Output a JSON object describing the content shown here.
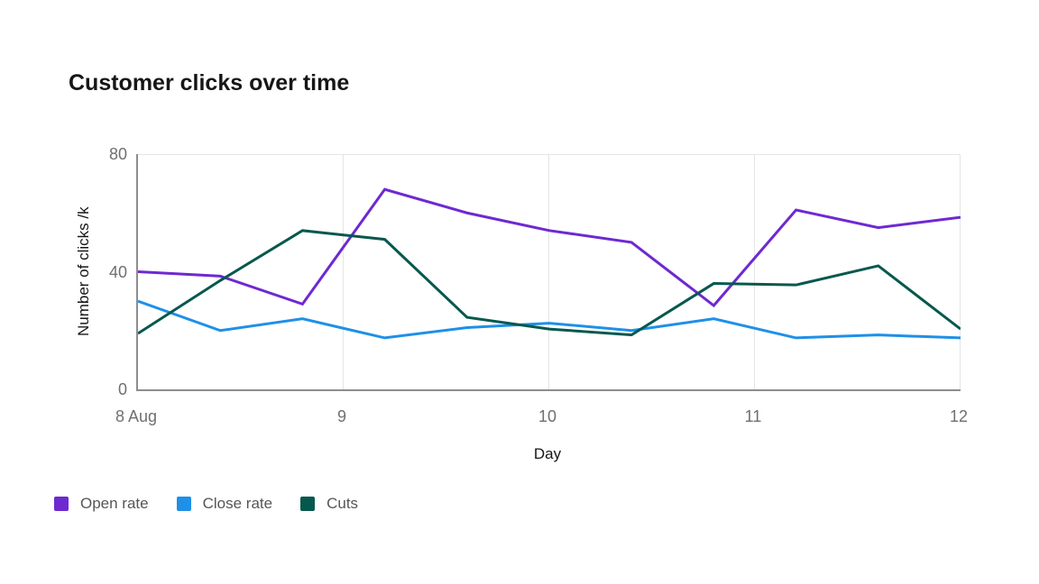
{
  "chart_data": {
    "type": "line",
    "title": "Customer clicks over time",
    "xlabel": "Day",
    "ylabel": "Number of clicks /k",
    "xlim": [
      8,
      12
    ],
    "ylim": [
      0,
      80
    ],
    "x": [
      8,
      8.4,
      8.8,
      9.2,
      9.6,
      10,
      10.4,
      10.8,
      11.2,
      11.6,
      12
    ],
    "x_ticks": [
      {
        "value": 8,
        "label": "8 Aug"
      },
      {
        "value": 9,
        "label": "9"
      },
      {
        "value": 10,
        "label": "10"
      },
      {
        "value": 11,
        "label": "11"
      },
      {
        "value": 12,
        "label": "12"
      }
    ],
    "y_ticks": [
      {
        "value": 0,
        "label": "0"
      },
      {
        "value": 40,
        "label": "40"
      },
      {
        "value": 80,
        "label": "80"
      }
    ],
    "grid": {
      "horizontal_values": [
        80
      ],
      "vertical_values": [
        9,
        10,
        11,
        12
      ]
    },
    "legend_position": "bottom-left",
    "series": [
      {
        "name": "Open rate",
        "color": "#6e29d1",
        "values": [
          40,
          38.5,
          29,
          68,
          60,
          54,
          50,
          28.5,
          61,
          55,
          58.5
        ]
      },
      {
        "name": "Close rate",
        "color": "#1e90e8",
        "values": [
          30,
          20,
          24,
          17.5,
          21,
          22.5,
          20,
          24,
          17.5,
          18.5,
          17.5
        ]
      },
      {
        "name": "Cuts",
        "color": "#06584e",
        "values": [
          19,
          37,
          54,
          51,
          24.5,
          20.5,
          18.5,
          36,
          35.5,
          42,
          20.5
        ]
      }
    ],
    "colors": {
      "axis_line": "#8d8d8d",
      "grid_line": "#e5e5e5",
      "tick_label": "#6f6f6f",
      "axis_title": "#161616",
      "legend_label": "#565656",
      "title": "#161616",
      "background": "#ffffff"
    }
  }
}
